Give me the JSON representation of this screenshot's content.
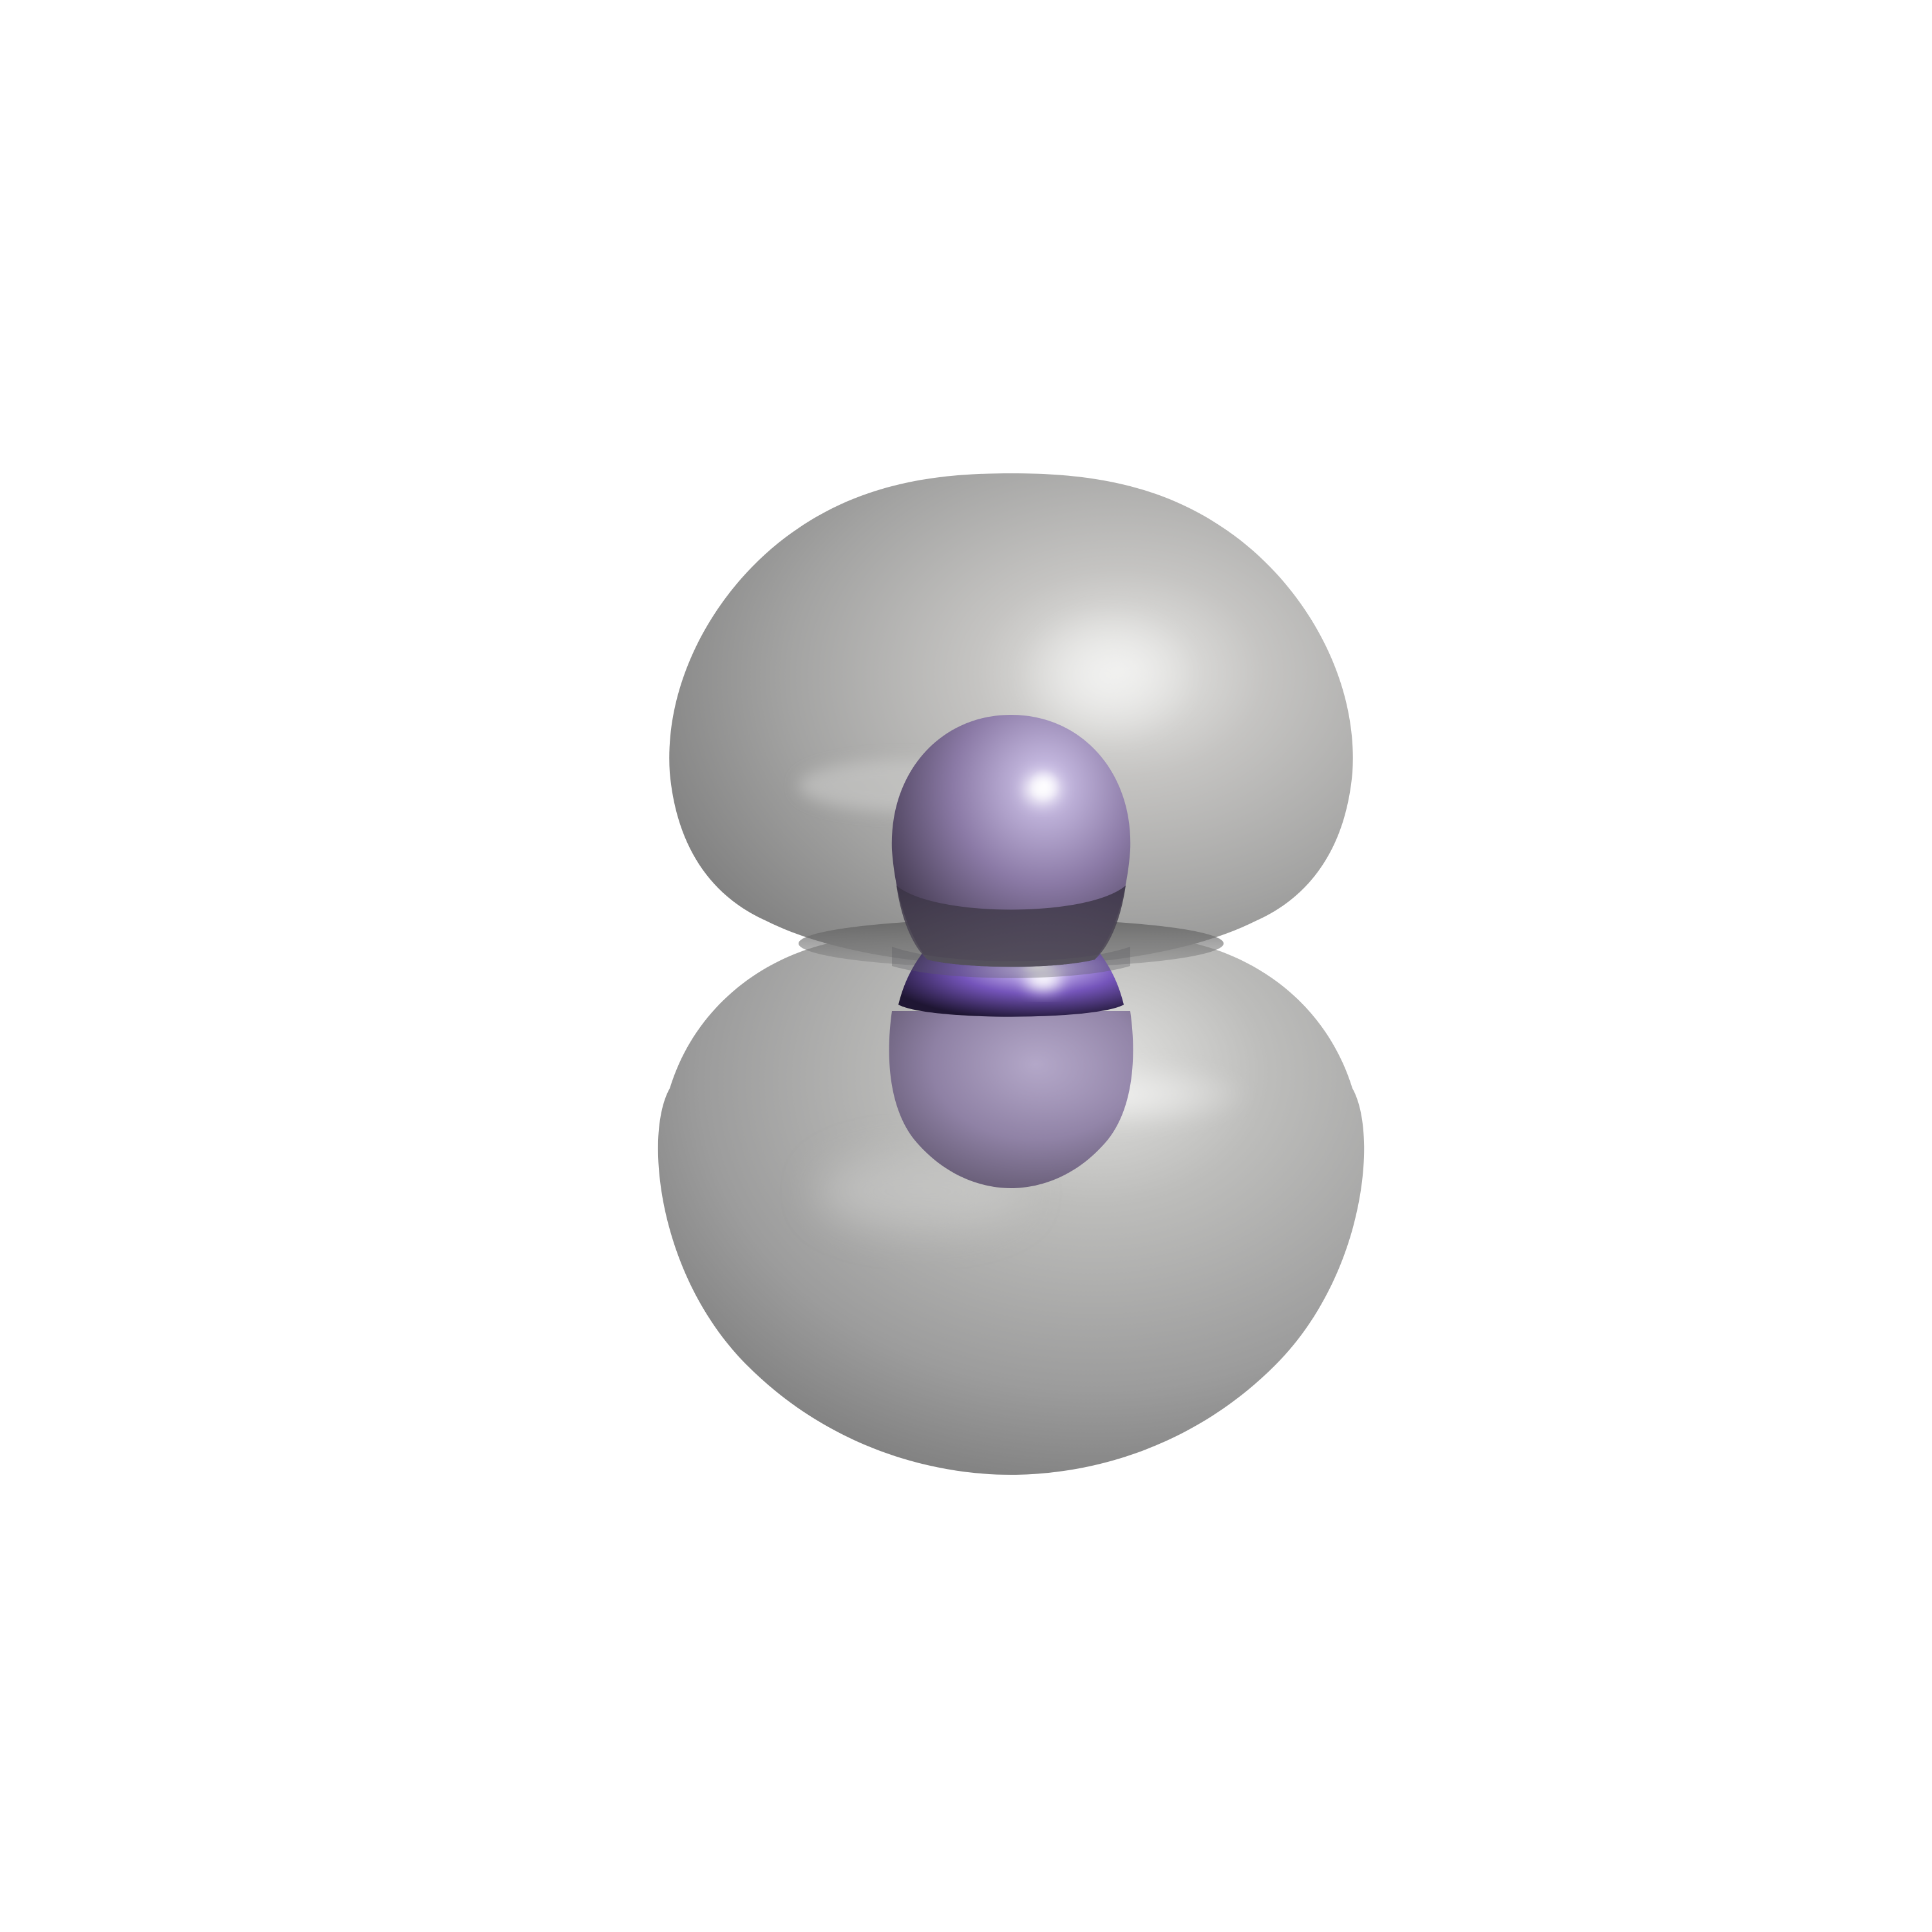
{
  "scene": {
    "background": "#ffffff",
    "colors": {
      "outer_lobe_light": "#e6e6e4",
      "outer_lobe_mid": "#b5b4b2",
      "outer_lobe_dark": "#7c7c7c",
      "inner_sphere_light": "#c9bfe4",
      "inner_sphere_mid": "#8a78a8",
      "inner_sphere_dark": "#3c3348",
      "inner_band_light": "#ffffff",
      "inner_band_mid": "#7a5cc0",
      "inner_band_dark": "#241a3a"
    }
  }
}
